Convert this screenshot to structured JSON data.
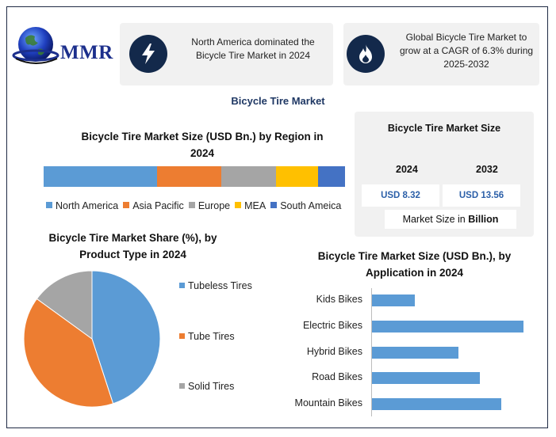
{
  "brand": {
    "logo_text": "MMR"
  },
  "callouts": [
    {
      "icon": "lightning-icon",
      "text_line1": "North America dominated the",
      "text_line2": "Bicycle Tire Market in 2024"
    },
    {
      "icon": "flame-icon",
      "text_line1": "Global Bicycle Tire Market to",
      "text_line2": "grow at a CAGR of 6.3% during",
      "text_line3": "2025-2032"
    }
  ],
  "main_title": "Bicycle Tire Market",
  "market_size": {
    "title": "Bicycle Tire Market Size",
    "year1": "2024",
    "year2": "2032",
    "value1": "USD 8.32",
    "value2": "USD 13.56",
    "note_prefix": "Market Size in ",
    "note_bold": "Billion"
  },
  "colors": {
    "north_america": "#5b9bd5",
    "asia_pacific": "#ed7d31",
    "europe": "#a5a5a5",
    "mea": "#ffc000",
    "south_america": "#4472c4",
    "bar": "#5b9bd5",
    "title_blue": "#1f3864"
  },
  "chart_data": [
    {
      "type": "bar",
      "orientation": "horizontal-stacked",
      "title_line1": "Bicycle Tire Market Size (USD Bn.) by Region in",
      "title_line2": "2024",
      "series": [
        {
          "name": "North America",
          "value": 37.5
        },
        {
          "name": "Asia Pacific",
          "value": 21.5
        },
        {
          "name": "Europe",
          "value": 18
        },
        {
          "name": "MEA",
          "value": 14
        },
        {
          "name": "South Ameica",
          "value": 9
        }
      ],
      "legend": "bottom"
    },
    {
      "type": "pie",
      "title_line1": "Bicycle Tire Market Share (%), by",
      "title_line2": "Product Type in 2024",
      "slices": [
        {
          "label": "Tubeless Tires",
          "value": 45
        },
        {
          "label": "Tube Tires",
          "value": 40
        },
        {
          "label": "Solid Tires",
          "value": 15
        }
      ],
      "legend": "right"
    },
    {
      "type": "bar",
      "orientation": "horizontal",
      "title_line1": "Bicycle Tire Market Size (USD Bn.), by",
      "title_line2": "Application in 2024",
      "categories": [
        "Kids Bikes",
        "Electric Bikes",
        "Hybrid Bikes",
        "Road Bikes",
        "Mountain Bikes"
      ],
      "values": [
        1.0,
        3.5,
        2.0,
        2.5,
        3.0
      ],
      "xlim": [
        0,
        3.6
      ],
      "grid": false
    }
  ]
}
